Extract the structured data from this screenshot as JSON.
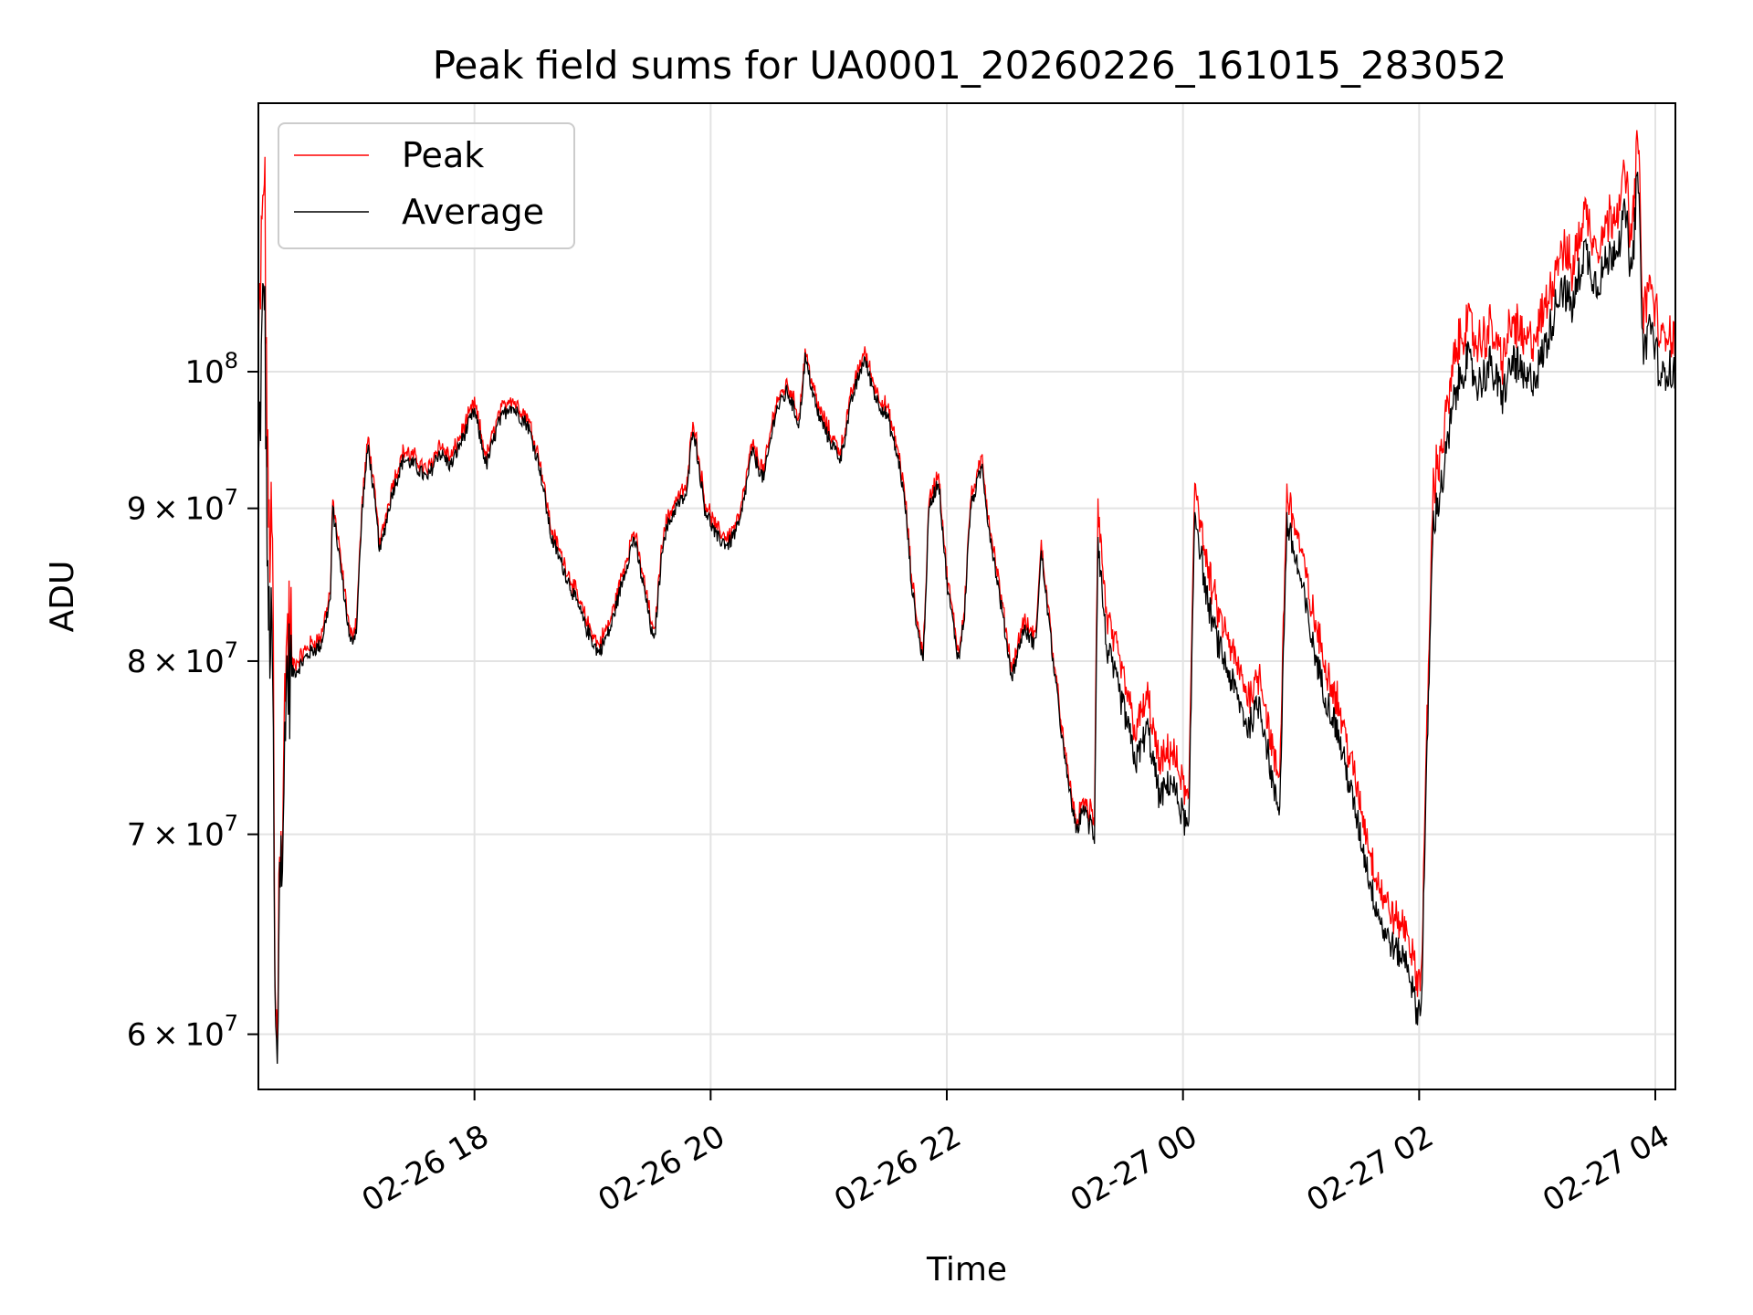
{
  "chart_data": {
    "type": "line",
    "title": "Peak field sums for UA0001_20260226_161015_283052",
    "xlabel": "Time",
    "ylabel": "ADU",
    "yscale": "log",
    "xlim_hours": [
      16.17,
      28.17
    ],
    "ylim": [
      57500000,
      123000000
    ],
    "grid": true,
    "legend_position": "upper-left",
    "x_ticks": [
      {
        "hours": 18,
        "label": "02-26 18"
      },
      {
        "hours": 20,
        "label": "02-26 20"
      },
      {
        "hours": 22,
        "label": "02-26 22"
      },
      {
        "hours": 24,
        "label": "02-27 00"
      },
      {
        "hours": 26,
        "label": "02-27 02"
      },
      {
        "hours": 28,
        "label": "02-27 04"
      }
    ],
    "y_ticks": [
      {
        "value": 60000000,
        "mant": "6",
        "exp": "7"
      },
      {
        "value": 70000000,
        "mant": "7",
        "exp": "7"
      },
      {
        "value": 80000000,
        "mant": "8",
        "exp": "7"
      },
      {
        "value": 90000000,
        "mant": "9",
        "exp": "7"
      },
      {
        "value": 100000000,
        "mant": "",
        "exp": "8"
      }
    ],
    "y_tick_times_symbol": "×",
    "y_tick_base": "10",
    "series": [
      {
        "name": "Peak",
        "color": "#ff0000"
      },
      {
        "name": "Average",
        "color": "#000000"
      }
    ],
    "average_key_points": [
      [
        16.17,
        92000000
      ],
      [
        16.22,
        108000000
      ],
      [
        16.25,
        83000000
      ],
      [
        16.29,
        80000000
      ],
      [
        16.31,
        61000000
      ],
      [
        16.33,
        57500000
      ],
      [
        16.35,
        69000000
      ],
      [
        16.38,
        68500000
      ],
      [
        16.4,
        79000000
      ],
      [
        16.5,
        79500000
      ],
      [
        16.6,
        80500000
      ],
      [
        16.7,
        81000000
      ],
      [
        16.78,
        84000000
      ],
      [
        16.8,
        90000000
      ],
      [
        16.85,
        87000000
      ],
      [
        16.9,
        84000000
      ],
      [
        16.95,
        81000000
      ],
      [
        17.0,
        82000000
      ],
      [
        17.05,
        90000000
      ],
      [
        17.1,
        94500000
      ],
      [
        17.2,
        87000000
      ],
      [
        17.3,
        91000000
      ],
      [
        17.4,
        93500000
      ],
      [
        17.5,
        93000000
      ],
      [
        17.6,
        92000000
      ],
      [
        17.7,
        94000000
      ],
      [
        17.8,
        93000000
      ],
      [
        17.9,
        95000000
      ],
      [
        18.0,
        97000000
      ],
      [
        18.1,
        93000000
      ],
      [
        18.2,
        96000000
      ],
      [
        18.3,
        97500000
      ],
      [
        18.45,
        96000000
      ],
      [
        18.55,
        93000000
      ],
      [
        18.65,
        88000000
      ],
      [
        18.75,
        86000000
      ],
      [
        18.85,
        84000000
      ],
      [
        18.95,
        82000000
      ],
      [
        19.05,
        80500000
      ],
      [
        19.15,
        82000000
      ],
      [
        19.25,
        85000000
      ],
      [
        19.35,
        88000000
      ],
      [
        19.45,
        84000000
      ],
      [
        19.52,
        81000000
      ],
      [
        19.6,
        88000000
      ],
      [
        19.7,
        90000000
      ],
      [
        19.8,
        91000000
      ],
      [
        19.85,
        96000000
      ],
      [
        19.95,
        90000000
      ],
      [
        20.05,
        88000000
      ],
      [
        20.15,
        87500000
      ],
      [
        20.25,
        89000000
      ],
      [
        20.35,
        94000000
      ],
      [
        20.45,
        92000000
      ],
      [
        20.55,
        97000000
      ],
      [
        20.65,
        98500000
      ],
      [
        20.75,
        96000000
      ],
      [
        20.8,
        101000000
      ],
      [
        20.9,
        97000000
      ],
      [
        21.0,
        95000000
      ],
      [
        21.1,
        93500000
      ],
      [
        21.2,
        98000000
      ],
      [
        21.3,
        101000000
      ],
      [
        21.4,
        98000000
      ],
      [
        21.5,
        96500000
      ],
      [
        21.6,
        93000000
      ],
      [
        21.65,
        90000000
      ],
      [
        21.7,
        85000000
      ],
      [
        21.75,
        82000000
      ],
      [
        21.8,
        80000000
      ],
      [
        21.85,
        90000000
      ],
      [
        21.93,
        92000000
      ],
      [
        22.0,
        85000000
      ],
      [
        22.1,
        80000000
      ],
      [
        22.15,
        83000000
      ],
      [
        22.2,
        90000000
      ],
      [
        22.3,
        93000000
      ],
      [
        22.35,
        89000000
      ],
      [
        22.45,
        84000000
      ],
      [
        22.55,
        79000000
      ],
      [
        22.65,
        82000000
      ],
      [
        22.75,
        81000000
      ],
      [
        22.8,
        87000000
      ],
      [
        22.9,
        80000000
      ],
      [
        23.0,
        74000000
      ],
      [
        23.1,
        70000000
      ],
      [
        23.15,
        71500000
      ],
      [
        23.25,
        70000000
      ],
      [
        23.28,
        88000000
      ],
      [
        23.35,
        81000000
      ],
      [
        23.5,
        77000000
      ],
      [
        23.6,
        74000000
      ],
      [
        23.7,
        76000000
      ],
      [
        23.8,
        72000000
      ],
      [
        23.9,
        73000000
      ],
      [
        24.0,
        71000000
      ],
      [
        24.05,
        70000000
      ],
      [
        24.1,
        90000000
      ],
      [
        24.2,
        84000000
      ],
      [
        24.3,
        81000000
      ],
      [
        24.45,
        78000000
      ],
      [
        24.55,
        76000000
      ],
      [
        24.65,
        77500000
      ],
      [
        24.78,
        72000000
      ],
      [
        24.82,
        71500000
      ],
      [
        24.88,
        89000000
      ],
      [
        25.0,
        85000000
      ],
      [
        25.1,
        81000000
      ],
      [
        25.2,
        78000000
      ],
      [
        25.3,
        76000000
      ],
      [
        25.4,
        73000000
      ],
      [
        25.5,
        70000000
      ],
      [
        25.6,
        67000000
      ],
      [
        25.7,
        65000000
      ],
      [
        25.8,
        64000000
      ],
      [
        25.9,
        63500000
      ],
      [
        25.98,
        61000000
      ],
      [
        26.02,
        61500000
      ],
      [
        26.12,
        89000000
      ],
      [
        26.2,
        92000000
      ],
      [
        26.3,
        98000000
      ],
      [
        26.4,
        101000000
      ],
      [
        26.5,
        99000000
      ],
      [
        26.6,
        100500000
      ],
      [
        26.7,
        98000000
      ],
      [
        26.8,
        101000000
      ],
      [
        26.9,
        99000000
      ],
      [
        27.0,
        100000000
      ],
      [
        27.1,
        103000000
      ],
      [
        27.2,
        107000000
      ],
      [
        27.3,
        105000000
      ],
      [
        27.4,
        110000000
      ],
      [
        27.5,
        107000000
      ],
      [
        27.6,
        109000000
      ],
      [
        27.7,
        111000000
      ],
      [
        27.75,
        113000000
      ],
      [
        27.8,
        107000000
      ],
      [
        27.85,
        117000000
      ],
      [
        27.9,
        101000000
      ],
      [
        27.95,
        104000000
      ],
      [
        28.0,
        102000000
      ],
      [
        28.05,
        99000000
      ],
      [
        28.1,
        100500000
      ],
      [
        28.17,
        99500000
      ]
    ]
  }
}
